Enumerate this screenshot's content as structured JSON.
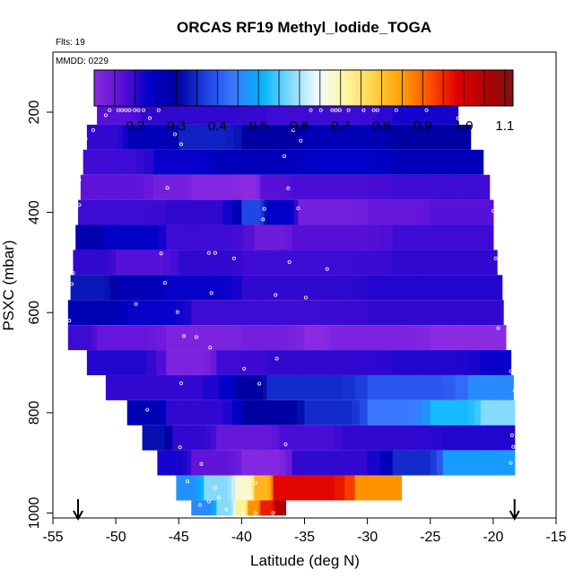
{
  "chart_data": {
    "type": "heatmap",
    "title": "ORCAS RF19 Methyl_Iodide_TOGA",
    "notes": {
      "flights": "Flts: 19",
      "mmdd": "MMDD: 0229"
    },
    "xlabel": "Latitude (deg N)",
    "ylabel": "PSXC (mbar)",
    "xlim": [
      -55,
      -15
    ],
    "ylim": [
      1010,
      80
    ],
    "x_ticks": [
      -55,
      -50,
      -45,
      -40,
      -35,
      -30,
      -25,
      -20,
      -15
    ],
    "x_tick_labels": [
      "-55",
      "-50",
      "-45",
      "-40",
      "-35",
      "-30",
      "-25",
      "-20",
      "-15"
    ],
    "y_ticks": [
      200,
      400,
      600,
      800,
      1000
    ],
    "y_tick_labels": [
      "200",
      "400",
      "600",
      "800",
      "1000"
    ],
    "colorbar": {
      "range": [
        0.1,
        1.12
      ],
      "ticks": [
        0.2,
        0.3,
        0.4,
        0.5,
        0.6,
        0.7,
        0.8,
        0.9,
        1.0,
        1.1
      ],
      "tick_labels": [
        "0.2",
        "0.3",
        "0.4",
        "0.5",
        "0.6",
        "0.7",
        "0.8",
        "0.9",
        "1.0",
        "1.1"
      ],
      "colors": [
        "#8a2be2",
        "#5a10d8",
        "#0000c8",
        "#0000a0",
        "#1e40e0",
        "#3a78ff",
        "#00b4ff",
        "#7fd8ff",
        "#eefcff",
        "#fff6a0",
        "#ffd24a",
        "#ffa000",
        "#ff5000",
        "#e00000",
        "#b00000",
        "#801010"
      ]
    },
    "arrows_latitude": [
      -53,
      -18.3
    ],
    "layers": [
      {
        "p_top": 175,
        "p_bot": 225,
        "lat_min": -51.5,
        "lat_max": -22.8,
        "segments": [
          [
            -51.5,
            -48,
            0.17
          ],
          [
            -48,
            -38,
            0.2
          ],
          [
            -38,
            -28,
            0.19
          ],
          [
            -28,
            -22.8,
            0.22
          ]
        ]
      },
      {
        "p_top": 225,
        "p_bot": 275,
        "lat_min": -52.3,
        "lat_max": -21.8,
        "segments": [
          [
            -52.3,
            -49,
            0.2
          ],
          [
            -49,
            -45,
            0.26
          ],
          [
            -45,
            -40,
            0.34
          ],
          [
            -40,
            -35,
            0.3
          ],
          [
            -35,
            -28,
            0.27
          ],
          [
            -28,
            -21.8,
            0.3
          ]
        ]
      },
      {
        "p_top": 275,
        "p_bot": 325,
        "lat_min": -52.6,
        "lat_max": -20.8,
        "segments": [
          [
            -52.6,
            -47,
            0.19
          ],
          [
            -47,
            -42,
            0.23
          ],
          [
            -42,
            -35,
            0.26
          ],
          [
            -35,
            -28,
            0.24
          ],
          [
            -28,
            -20.8,
            0.26
          ]
        ]
      },
      {
        "p_top": 325,
        "p_bot": 375,
        "lat_min": -52.8,
        "lat_max": -20.3,
        "segments": [
          [
            -52.8,
            -47,
            0.16
          ],
          [
            -47,
            -44,
            0.13
          ],
          [
            -44,
            -40,
            0.11
          ],
          [
            -40,
            -38.5,
            0.1
          ],
          [
            -38.5,
            -36,
            0.17
          ],
          [
            -36,
            -28,
            0.18
          ],
          [
            -28,
            -20.3,
            0.19
          ]
        ]
      },
      {
        "p_top": 375,
        "p_bot": 425,
        "lat_min": -53,
        "lat_max": -20,
        "segments": [
          [
            -53,
            -46,
            0.19
          ],
          [
            -46,
            -40,
            0.2
          ],
          [
            -40,
            -38,
            0.38
          ],
          [
            -38,
            -35.5,
            0.24
          ],
          [
            -35.5,
            -30,
            0.13
          ],
          [
            -30,
            -25,
            0.15
          ],
          [
            -25,
            -20,
            0.17
          ]
        ]
      },
      {
        "p_top": 425,
        "p_bot": 475,
        "lat_min": -53.2,
        "lat_max": -20,
        "segments": [
          [
            -53.2,
            -51,
            0.28
          ],
          [
            -51,
            -46,
            0.24
          ],
          [
            -46,
            -39,
            0.19
          ],
          [
            -39,
            -36,
            0.14
          ],
          [
            -36,
            -28,
            0.17
          ],
          [
            -28,
            -20,
            0.19
          ]
        ]
      },
      {
        "p_top": 475,
        "p_bot": 525,
        "lat_min": -53.4,
        "lat_max": -19.7,
        "segments": [
          [
            -53.4,
            -50,
            0.2
          ],
          [
            -50,
            -45,
            0.17
          ],
          [
            -45,
            -40,
            0.2
          ],
          [
            -40,
            -28,
            0.19
          ],
          [
            -28,
            -19.7,
            0.2
          ]
        ]
      },
      {
        "p_top": 525,
        "p_bot": 575,
        "lat_min": -53.6,
        "lat_max": -19.3,
        "segments": [
          [
            -53.6,
            -50,
            0.33
          ],
          [
            -50,
            -46,
            0.27
          ],
          [
            -46,
            -40,
            0.23
          ],
          [
            -40,
            -30,
            0.2
          ],
          [
            -30,
            -19.3,
            0.21
          ]
        ]
      },
      {
        "p_top": 575,
        "p_bot": 625,
        "lat_min": -53.8,
        "lat_max": -19.2,
        "segments": [
          [
            -53.8,
            -49,
            0.27
          ],
          [
            -49,
            -44,
            0.23
          ],
          [
            -44,
            -30,
            0.19
          ],
          [
            -30,
            -19.2,
            0.2
          ]
        ]
      },
      {
        "p_top": 625,
        "p_bot": 675,
        "lat_min": -53.8,
        "lat_max": -19,
        "segments": [
          [
            -53.8,
            -51.5,
            0.19
          ],
          [
            -51.5,
            -46,
            0.15
          ],
          [
            -46,
            -40,
            0.12
          ],
          [
            -40,
            -35,
            0.13
          ],
          [
            -35,
            -33,
            0.1
          ],
          [
            -33,
            -25,
            0.12
          ],
          [
            -25,
            -19,
            0.1
          ]
        ]
      },
      {
        "p_top": 675,
        "p_bot": 725,
        "lat_min": -52.3,
        "lat_max": -18.6,
        "segments": [
          [
            -52.3,
            -46,
            0.21
          ],
          [
            -46,
            -42,
            0.12
          ],
          [
            -42,
            -38,
            0.19
          ],
          [
            -38,
            -28,
            0.2
          ],
          [
            -28,
            -21,
            0.21
          ],
          [
            -21,
            -18.6,
            0.23
          ]
        ]
      },
      {
        "p_top": 725,
        "p_bot": 775,
        "lat_min": -50.8,
        "lat_max": -18.4,
        "segments": [
          [
            -50.8,
            -40.5,
            0.2
          ],
          [
            -40.5,
            -38,
            0.3
          ],
          [
            -38,
            -30,
            0.35
          ],
          [
            -30,
            -22,
            0.4
          ],
          [
            -22,
            -18.4,
            0.46
          ]
        ]
      },
      {
        "p_top": 775,
        "p_bot": 825,
        "lat_min": -49.1,
        "lat_max": -18.3,
        "segments": [
          [
            -49.1,
            -46,
            0.27
          ],
          [
            -46,
            -40,
            0.2
          ],
          [
            -40,
            -35,
            0.3
          ],
          [
            -35,
            -30,
            0.35
          ],
          [
            -30,
            -25,
            0.44
          ],
          [
            -25,
            -21,
            0.52
          ],
          [
            -21,
            -18.3,
            0.58
          ]
        ]
      },
      {
        "p_top": 825,
        "p_bot": 875,
        "lat_min": -47.9,
        "lat_max": -18.3,
        "segments": [
          [
            -47.9,
            -45.5,
            0.32
          ],
          [
            -45.5,
            -42,
            0.2
          ],
          [
            -42,
            -37,
            0.15
          ],
          [
            -37,
            -32,
            0.18
          ],
          [
            -32,
            -24,
            0.2
          ],
          [
            -24,
            -18.3,
            0.21
          ]
        ]
      },
      {
        "p_top": 875,
        "p_bot": 925,
        "lat_min": -46.7,
        "lat_max": -18.3,
        "segments": [
          [
            -46.7,
            -44,
            0.22
          ],
          [
            -44,
            -40,
            0.16
          ],
          [
            -40,
            -36,
            0.11
          ],
          [
            -36,
            -28,
            0.2
          ],
          [
            -28,
            -24,
            0.35
          ],
          [
            -24,
            -18.3,
            0.48
          ]
        ]
      },
      {
        "p_top": 925,
        "p_bot": 975,
        "lat_min": -45.2,
        "lat_max": -27.3,
        "segments": [
          [
            -45.2,
            -43,
            0.47
          ],
          [
            -43,
            -40.5,
            0.58
          ],
          [
            -40.5,
            -39,
            0.68
          ],
          [
            -39,
            -37.5,
            0.82
          ],
          [
            -37.5,
            -31,
            0.98
          ],
          [
            -31,
            -27.3,
            0.86
          ]
        ]
      },
      {
        "p_top": 975,
        "p_bot": 1005,
        "lat_min": -44,
        "lat_max": -36.5,
        "segments": [
          [
            -44,
            -42,
            0.46
          ],
          [
            -42,
            -40.5,
            0.58
          ],
          [
            -40.5,
            -39.5,
            0.72
          ],
          [
            -39.5,
            -38.5,
            0.86
          ],
          [
            -38.5,
            -37.3,
            0.96
          ],
          [
            -37.3,
            -36.5,
            1.05
          ]
        ]
      }
    ],
    "samples": [
      [
        -50.5,
        196
      ],
      [
        -49.8,
        196
      ],
      [
        -49.5,
        196
      ],
      [
        -49.2,
        196
      ],
      [
        -48.9,
        196
      ],
      [
        -48.5,
        196
      ],
      [
        -48.2,
        196
      ],
      [
        -47.8,
        196
      ],
      [
        -46.6,
        196
      ],
      [
        -34.5,
        196
      ],
      [
        -33.7,
        196
      ],
      [
        -32.8,
        196
      ],
      [
        -32.5,
        196
      ],
      [
        -32.2,
        196
      ],
      [
        -31.5,
        196
      ],
      [
        -30.3,
        196
      ],
      [
        -29.5,
        196
      ],
      [
        -29.2,
        196
      ],
      [
        -27.7,
        196
      ],
      [
        -25.3,
        196
      ],
      [
        -22.8,
        212
      ],
      [
        -50.8,
        206
      ],
      [
        -47.3,
        212
      ],
      [
        -51.8,
        236
      ],
      [
        -52.4,
        253
      ],
      [
        -45.3,
        244
      ],
      [
        -44.8,
        264
      ],
      [
        -35.9,
        236
      ],
      [
        -35.3,
        257
      ],
      [
        -52.8,
        290
      ],
      [
        -36.6,
        288
      ],
      [
        -52.9,
        335
      ],
      [
        -45.9,
        351
      ],
      [
        -36.3,
        352
      ],
      [
        -52.9,
        385
      ],
      [
        -38.2,
        393
      ],
      [
        -38.3,
        414
      ],
      [
        -35.5,
        392
      ],
      [
        -20,
        397
      ],
      [
        -53.2,
        418
      ],
      [
        -46.4,
        482
      ],
      [
        -42.6,
        481
      ],
      [
        -42.1,
        481
      ],
      [
        -53.4,
        521
      ],
      [
        -40.6,
        492
      ],
      [
        -36.2,
        499
      ],
      [
        -33.2,
        513
      ],
      [
        -19.8,
        492
      ],
      [
        -46.1,
        541
      ],
      [
        -53.5,
        543
      ],
      [
        -48.4,
        583
      ],
      [
        -37.3,
        565
      ],
      [
        -42.4,
        561
      ],
      [
        -34.9,
        570
      ],
      [
        -45.1,
        599
      ],
      [
        -53.7,
        616
      ],
      [
        -43.6,
        649
      ],
      [
        -19.6,
        631
      ],
      [
        -44.6,
        647
      ],
      [
        -42.5,
        670
      ],
      [
        -37.2,
        692
      ],
      [
        -39.8,
        712
      ],
      [
        -38.6,
        742
      ],
      [
        -44.8,
        741
      ],
      [
        -51.3,
        761
      ],
      [
        -18.6,
        717
      ],
      [
        -18.3,
        756
      ],
      [
        -47.5,
        794
      ],
      [
        -36.5,
        863
      ],
      [
        -44.9,
        869
      ],
      [
        -18.5,
        845
      ],
      [
        -18.4,
        868
      ],
      [
        -43.2,
        902
      ],
      [
        -38.9,
        940
      ],
      [
        -44.3,
        937
      ],
      [
        -42.1,
        950
      ],
      [
        -39.3,
        969
      ],
      [
        -41.8,
        969
      ],
      [
        -42.6,
        977
      ],
      [
        -43.3,
        984
      ],
      [
        -41.2,
        993
      ],
      [
        -39.9,
        1000
      ],
      [
        -38.9,
        1000
      ],
      [
        -37.5,
        1000
      ],
      [
        -18.3,
        935
      ],
      [
        -18.6,
        900
      ]
    ]
  }
}
